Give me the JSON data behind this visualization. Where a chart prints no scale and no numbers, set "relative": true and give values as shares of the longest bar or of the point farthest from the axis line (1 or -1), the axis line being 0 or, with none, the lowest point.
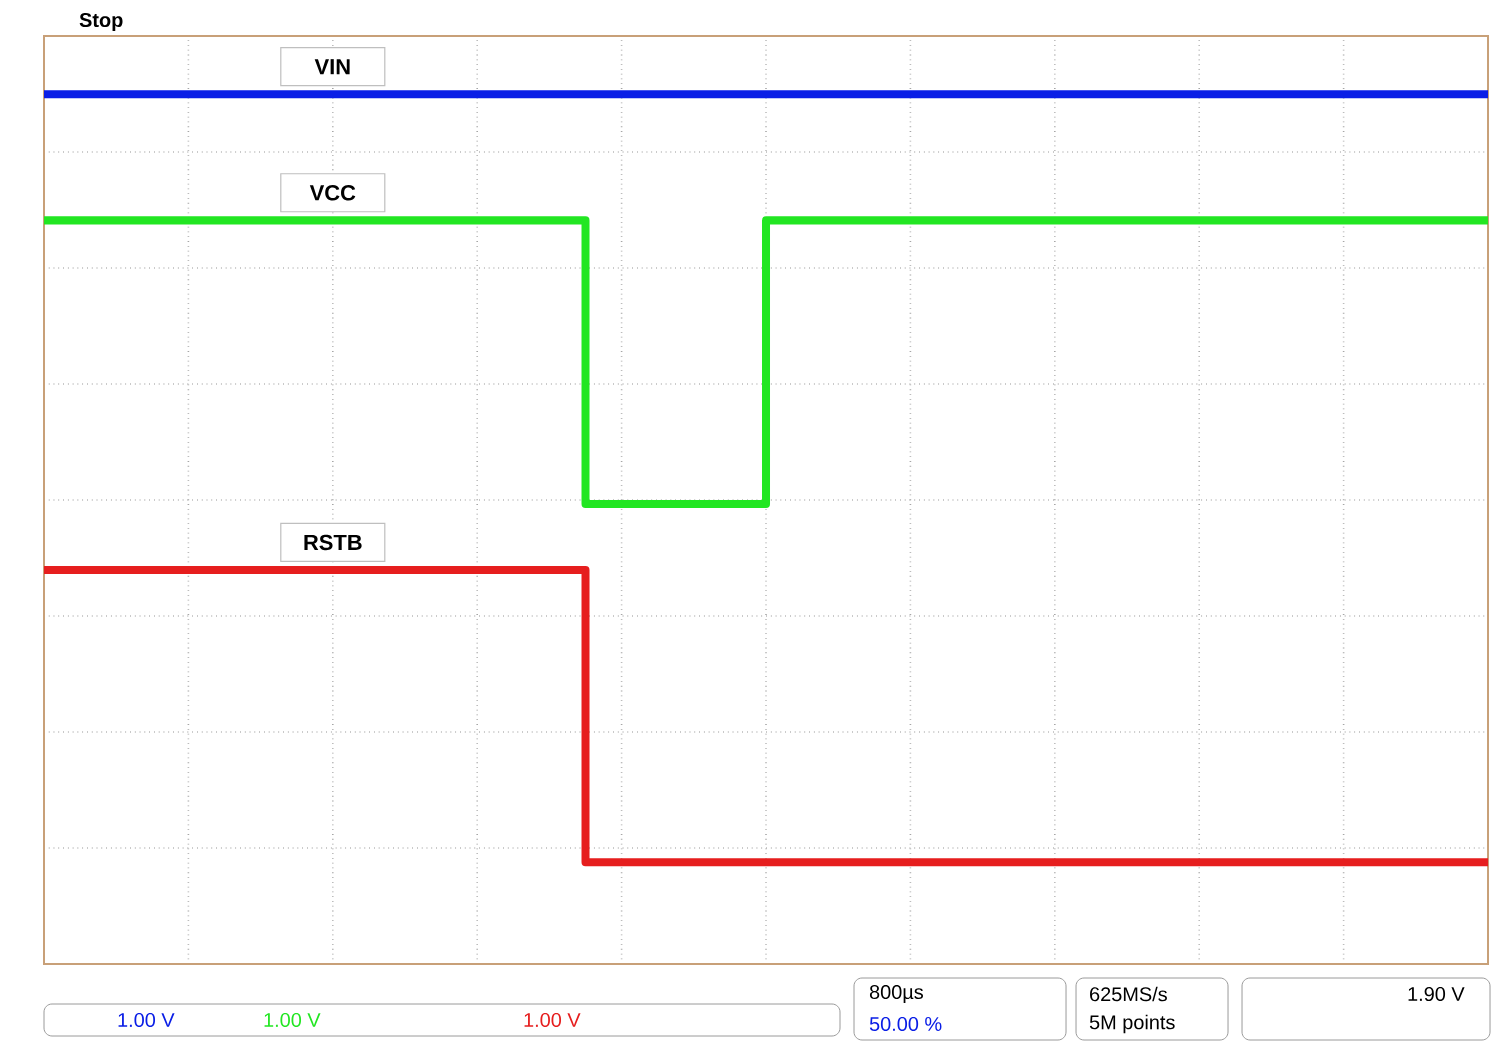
{
  "chart_data": {
    "type": "step",
    "relative": true,
    "grid": true,
    "legend": false,
    "categories": [
      null,
      null,
      null,
      null,
      null,
      null,
      null,
      null,
      null,
      null,
      null,
      null,
      null,
      null,
      null,
      null,
      null,
      null,
      null,
      null,
      null,
      null,
      null,
      null,
      null,
      null,
      null,
      null,
      null,
      null,
      null,
      null,
      null,
      null,
      null,
      null,
      null,
      null,
      null,
      null,
      null
    ],
    "series": [
      {
        "name": "VIN",
        "color": "#0a1ee6",
        "values": [
          1,
          1,
          1,
          1,
          1,
          1,
          1,
          1,
          1,
          1,
          1,
          1,
          1,
          1,
          1,
          1,
          1,
          1,
          1,
          1,
          1,
          1,
          1,
          1,
          1,
          1,
          1,
          1,
          1,
          1,
          1,
          1,
          1,
          1,
          1,
          1,
          1,
          1,
          1,
          1,
          1
        ]
      },
      {
        "name": "VCC",
        "color": "#22e622",
        "values": [
          0.855,
          0.855,
          0.855,
          0.855,
          0.855,
          0.855,
          0.855,
          0.855,
          0.855,
          0.855,
          0.855,
          0.855,
          0.855,
          0.855,
          0.855,
          0.529,
          0.529,
          0.529,
          0.529,
          0.529,
          0.855,
          0.855,
          0.855,
          0.855,
          0.855,
          0.855,
          0.855,
          0.855,
          0.855,
          0.855,
          0.855,
          0.855,
          0.855,
          0.855,
          0.855,
          0.855,
          0.855,
          0.855,
          0.855,
          0.855,
          0.855
        ]
      },
      {
        "name": "RSTB",
        "color": "#e61e1e",
        "values": [
          0.453,
          0.453,
          0.453,
          0.453,
          0.453,
          0.453,
          0.453,
          0.453,
          0.453,
          0.453,
          0.453,
          0.453,
          0.453,
          0.453,
          0.453,
          0.117,
          0.117,
          0.117,
          0.117,
          0.117,
          0.117,
          0.117,
          0.117,
          0.117,
          0.117,
          0.117,
          0.117,
          0.117,
          0.117,
          0.117,
          0.117,
          0.117,
          0.117,
          0.117,
          0.117,
          0.117,
          0.117,
          0.117,
          0.117,
          0.117,
          0.117
        ]
      }
    ],
    "annotations": [
      "Stop",
      "1.00 V",
      "1.00 V",
      "1.00 V",
      "800µs",
      "50.00 %",
      "625MS/s",
      "5M points",
      "1.90 V"
    ]
  }
}
